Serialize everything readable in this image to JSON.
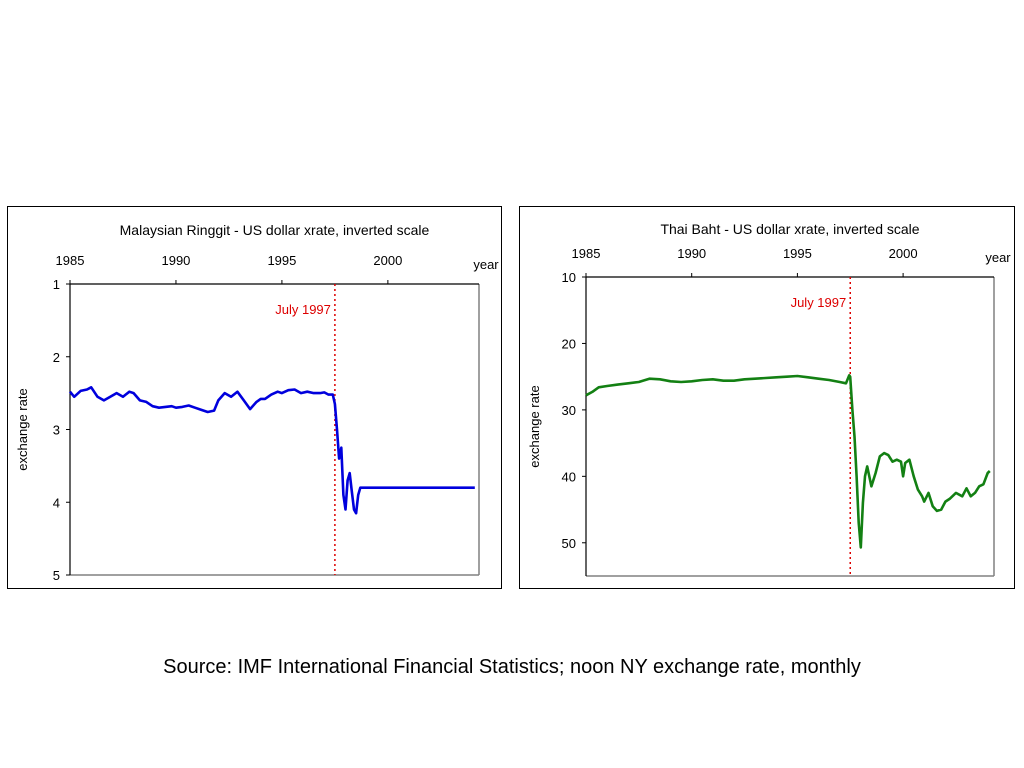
{
  "source_note": "Source: IMF International Financial Statistics; noon NY exchange rate, monthly",
  "chart_data": [
    {
      "type": "line",
      "title": "Malaysian Ringgit - US dollar xrate, inverted scale",
      "xlabel": "year",
      "ylabel": "exchange rate",
      "x_ticks": [
        "1985",
        "1990",
        "1995",
        "2000"
      ],
      "y_ticks": [
        "1",
        "2",
        "3",
        "4",
        "5"
      ],
      "xlim": [
        1985,
        2004.3
      ],
      "ylim": [
        1,
        5
      ],
      "y_inverted": true,
      "x_axis_position": "top",
      "grid": false,
      "line_color": "#0000dd",
      "annotation": {
        "text": "July 1997",
        "x": 1997.5,
        "color": "#dd0000",
        "style": "dotted"
      },
      "series": [
        {
          "x": [
            1985.0,
            1985.2,
            1985.5,
            1985.8,
            1986.0,
            1986.3,
            1986.6,
            1986.9,
            1987.2,
            1987.5,
            1987.8,
            1988.0,
            1988.3,
            1988.6,
            1988.9,
            1989.2,
            1989.5,
            1989.8,
            1990.0,
            1990.3,
            1990.6,
            1990.9,
            1991.2,
            1991.5,
            1991.8,
            1992.0,
            1992.3,
            1992.6,
            1992.9,
            1993.2,
            1993.5,
            1993.8,
            1994.0,
            1994.2,
            1994.5,
            1994.8,
            1995.0,
            1995.3,
            1995.6,
            1995.9,
            1996.2,
            1996.5,
            1996.8,
            1997.0,
            1997.2,
            1997.4,
            1997.5,
            1997.6,
            1997.7,
            1997.8,
            1997.9,
            1998.0,
            1998.1,
            1998.2,
            1998.3,
            1998.4,
            1998.5,
            1998.6,
            1998.7,
            1998.8,
            1999.0,
            2000.0,
            2001.0,
            2002.0,
            2003.0,
            2004.1
          ],
          "y": [
            2.48,
            2.55,
            2.47,
            2.45,
            2.42,
            2.55,
            2.6,
            2.55,
            2.5,
            2.55,
            2.48,
            2.5,
            2.6,
            2.62,
            2.68,
            2.7,
            2.69,
            2.68,
            2.7,
            2.69,
            2.67,
            2.7,
            2.73,
            2.76,
            2.74,
            2.6,
            2.5,
            2.55,
            2.48,
            2.6,
            2.72,
            2.62,
            2.58,
            2.58,
            2.52,
            2.48,
            2.5,
            2.46,
            2.45,
            2.5,
            2.48,
            2.5,
            2.5,
            2.49,
            2.52,
            2.52,
            2.65,
            3.0,
            3.4,
            3.25,
            3.9,
            4.1,
            3.7,
            3.6,
            3.85,
            4.1,
            4.15,
            3.9,
            3.8,
            3.8,
            3.8,
            3.8,
            3.8,
            3.8,
            3.8,
            3.8
          ]
        }
      ]
    },
    {
      "type": "line",
      "title": "Thai Baht - US dollar xrate, inverted scale",
      "xlabel": "year",
      "ylabel": "exchange rate",
      "x_ticks": [
        "1985",
        "1990",
        "1995",
        "2000"
      ],
      "y_ticks": [
        "10",
        "20",
        "30",
        "40",
        "50"
      ],
      "xlim": [
        1985,
        2004.3
      ],
      "ylim": [
        10,
        55
      ],
      "y_inverted": true,
      "x_axis_position": "top",
      "grid": false,
      "line_color": "#138013",
      "annotation": {
        "text": "July 1997",
        "x": 1997.5,
        "color": "#dd0000",
        "style": "dotted"
      },
      "series": [
        {
          "x": [
            1985.0,
            1985.3,
            1985.6,
            1986.0,
            1986.5,
            1987.0,
            1987.5,
            1988.0,
            1988.5,
            1989.0,
            1989.5,
            1990.0,
            1990.5,
            1991.0,
            1991.5,
            1992.0,
            1992.5,
            1993.0,
            1993.5,
            1994.0,
            1994.5,
            1995.0,
            1995.5,
            1996.0,
            1996.5,
            1997.0,
            1997.3,
            1997.45,
            1997.5,
            1997.6,
            1997.7,
            1997.8,
            1997.9,
            1998.0,
            1998.1,
            1998.2,
            1998.3,
            1998.5,
            1998.7,
            1998.9,
            1999.1,
            1999.3,
            1999.5,
            1999.7,
            1999.9,
            2000.0,
            2000.1,
            2000.3,
            2000.5,
            2000.7,
            2000.9,
            2001.0,
            2001.2,
            2001.4,
            2001.6,
            2001.8,
            2002.0,
            2002.2,
            2002.5,
            2002.8,
            2003.0,
            2003.2,
            2003.4,
            2003.6,
            2003.8,
            2004.0,
            2004.1
          ],
          "y": [
            27.8,
            27.3,
            26.6,
            26.4,
            26.2,
            26.0,
            25.8,
            25.3,
            25.4,
            25.7,
            25.8,
            25.7,
            25.5,
            25.4,
            25.6,
            25.6,
            25.4,
            25.3,
            25.2,
            25.1,
            25.0,
            24.9,
            25.1,
            25.3,
            25.5,
            25.8,
            26.0,
            24.8,
            25.0,
            30.0,
            34.0,
            40.0,
            47.0,
            50.7,
            44.0,
            40.0,
            38.5,
            41.5,
            39.5,
            37.0,
            36.5,
            36.8,
            37.8,
            37.5,
            37.8,
            40.0,
            38.0,
            37.5,
            40.0,
            42.0,
            43.0,
            43.8,
            42.5,
            44.5,
            45.2,
            45.0,
            43.8,
            43.4,
            42.5,
            43.0,
            41.8,
            43.0,
            42.5,
            41.5,
            41.2,
            39.5,
            39.2
          ]
        }
      ]
    }
  ]
}
